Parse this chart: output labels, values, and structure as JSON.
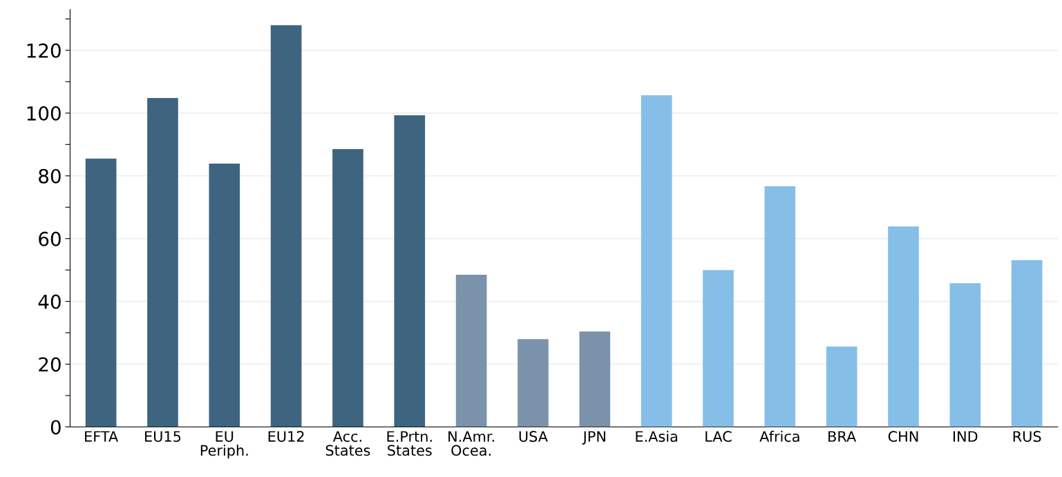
{
  "chart_data": {
    "type": "bar",
    "categories": [
      "EFTA",
      "EU15",
      "EU\nPeriph.",
      "EU12",
      "Acc.\nStates",
      "E.Prtn.\nStates",
      "N.Amr.\nOcea.",
      "USA",
      "JPN",
      "E.Asia",
      "LAC",
      "Africa",
      "BRA",
      "CHN",
      "IND",
      "RUS"
    ],
    "values": [
      85.5,
      104.8,
      83.9,
      128,
      88.5,
      99.3,
      48.5,
      28.0,
      30.4,
      105.7,
      50.0,
      76.7,
      25.6,
      63.9,
      45.8,
      53.1
    ],
    "colors": [
      "#3e6480",
      "#3e6480",
      "#3e6480",
      "#3e6480",
      "#3e6480",
      "#3e6480",
      "#7a93aa",
      "#7a93aa",
      "#7a93aa",
      "#85bfe8",
      "#85bfe8",
      "#85bfe8",
      "#85bfe8",
      "#85bfe8",
      "#85bfe8",
      "#85bfe8"
    ],
    "ylim": [
      0,
      133
    ],
    "yticks": [
      0,
      {
        "value": 10,
        "label": null
      },
      20,
      {
        "value": 30,
        "label": null
      },
      40,
      {
        "value": 50,
        "label": null
      },
      60,
      {
        "value": 70,
        "label": null
      },
      80,
      {
        "value": 90,
        "label": null
      },
      100,
      {
        "value": 110,
        "label": null
      },
      120,
      {
        "value": 130,
        "label": null
      }
    ],
    "grid": "y"
  }
}
